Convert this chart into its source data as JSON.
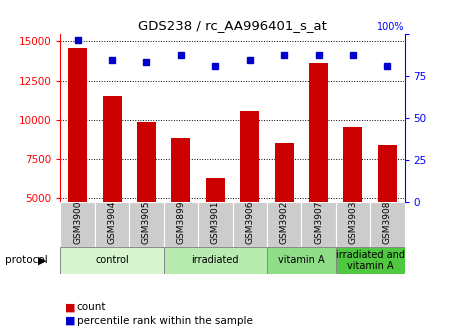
{
  "title": "GDS238 / rc_AA996401_s_at",
  "samples": [
    "GSM3900",
    "GSM3904",
    "GSM3905",
    "GSM3899",
    "GSM3901",
    "GSM3906",
    "GSM3902",
    "GSM3907",
    "GSM3903",
    "GSM3908"
  ],
  "counts": [
    14600,
    11550,
    9850,
    8850,
    6300,
    10600,
    8550,
    13600,
    9550,
    8400
  ],
  "percentile_ranks": [
    96,
    84,
    83,
    87,
    81,
    84,
    87,
    87,
    87,
    81
  ],
  "ylim_left": [
    4800,
    15500
  ],
  "ylim_right": [
    0,
    100
  ],
  "yticks_left": [
    5000,
    7500,
    10000,
    12500,
    15000
  ],
  "yticks_right": [
    0,
    25,
    50,
    75,
    100
  ],
  "ytick_right_labels": [
    "0",
    "25",
    "50",
    "75",
    "100"
  ],
  "protocols": [
    {
      "label": "control",
      "start": 0,
      "end": 3,
      "color": "#d8f5d0"
    },
    {
      "label": "irradiated",
      "start": 3,
      "end": 6,
      "color": "#b8ebb0"
    },
    {
      "label": "vitamin A",
      "start": 6,
      "end": 8,
      "color": "#90dd88"
    },
    {
      "label": "irradiated and\nvitamin A",
      "start": 8,
      "end": 10,
      "color": "#50c840"
    }
  ],
  "bar_color": "#cc0000",
  "dot_color": "#0000cc",
  "sample_bg_color": "#cccccc",
  "legend_count_color": "#cc0000",
  "legend_dot_color": "#0000cc",
  "bar_width": 0.55
}
